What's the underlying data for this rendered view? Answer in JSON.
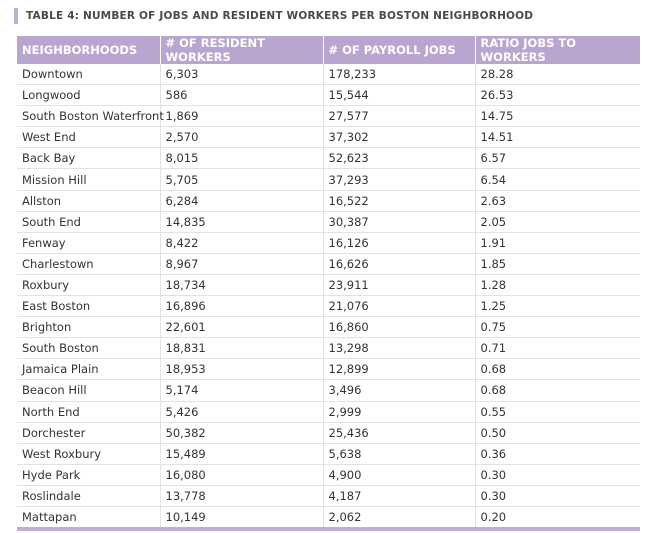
{
  "title": "TABLE 4: NUMBER OF JOBS AND RESIDENT WORKERS PER BOSTON NEIGHBORHOOD",
  "table": {
    "columns": [
      "NEIGHBORHOODS",
      "# OF RESIDENT WORKERS",
      "# OF PAYROLL JOBS",
      "RATIO JOBS TO WORKERS"
    ],
    "rows": [
      [
        "Downtown",
        "6,303",
        "178,233",
        "28.28"
      ],
      [
        "Longwood",
        "586",
        "15,544",
        "26.53"
      ],
      [
        "South Boston Waterfront",
        "1,869",
        "27,577",
        "14.75"
      ],
      [
        "West End",
        "2,570",
        "37,302",
        "14.51"
      ],
      [
        "Back Bay",
        "8,015",
        "52,623",
        "6.57"
      ],
      [
        "Mission Hill",
        "5,705",
        "37,293",
        "6.54"
      ],
      [
        "Allston",
        "6,284",
        "16,522",
        "2.63"
      ],
      [
        "South End",
        "14,835",
        "30,387",
        "2.05"
      ],
      [
        "Fenway",
        "8,422",
        "16,126",
        "1.91"
      ],
      [
        "Charlestown",
        "8,967",
        "16,626",
        "1.85"
      ],
      [
        "Roxbury",
        "18,734",
        "23,911",
        "1.28"
      ],
      [
        "East Boston",
        "16,896",
        "21,076",
        "1.25"
      ],
      [
        "Brighton",
        "22,601",
        "16,860",
        "0.75"
      ],
      [
        "South Boston",
        "18,831",
        "13,298",
        "0.71"
      ],
      [
        "Jamaica Plain",
        "18,953",
        "12,899",
        "0.68"
      ],
      [
        "Beacon Hill",
        "5,174",
        "3,496",
        "0.68"
      ],
      [
        "North End",
        "5,426",
        "2,999",
        "0.55"
      ],
      [
        "Dorchester",
        "50,382",
        "25,436",
        "0.50"
      ],
      [
        "West Roxbury",
        "15,489",
        "5,638",
        "0.36"
      ],
      [
        "Hyde Park",
        "16,080",
        "4,900",
        "0.30"
      ],
      [
        "Roslindale",
        "13,778",
        "4,187",
        "0.30"
      ],
      [
        "Mattapan",
        "10,149",
        "2,062",
        "0.20"
      ]
    ]
  }
}
